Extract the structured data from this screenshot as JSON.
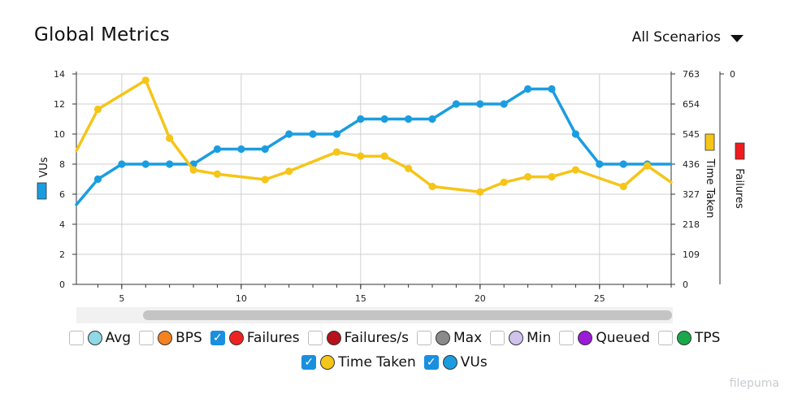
{
  "header": {
    "title": "Global Metrics",
    "scenario_label": "All Scenarios"
  },
  "legend": [
    {
      "label": "Avg",
      "checked": false,
      "color": "#8fd8e6"
    },
    {
      "label": "BPS",
      "checked": false,
      "color": "#f58220"
    },
    {
      "label": "Failures",
      "checked": true,
      "color": "#ee2222"
    },
    {
      "label": "Failures/s",
      "checked": false,
      "color": "#b5121b"
    },
    {
      "label": "Max",
      "checked": false,
      "color": "#8a8a8a"
    },
    {
      "label": "Min",
      "checked": false,
      "color": "#cfc3ee"
    },
    {
      "label": "Queued",
      "checked": false,
      "color": "#9b1bd6"
    },
    {
      "label": "TPS",
      "checked": false,
      "color": "#19a84a"
    },
    {
      "label": "Time Taken",
      "checked": true,
      "color": "#f5c518"
    },
    {
      "label": "VUs",
      "checked": true,
      "color": "#1a9de0"
    }
  ],
  "watermark": "filepuma",
  "chart_data": {
    "type": "line",
    "x_ticks": [
      "5",
      "10",
      "15",
      "20",
      "25"
    ],
    "xlim": [
      3.1,
      28
    ],
    "y_left": {
      "label": "VUs",
      "ticks": [
        "0",
        "2",
        "4",
        "6",
        "8",
        "10",
        "12",
        "14"
      ],
      "range": [
        0,
        14
      ]
    },
    "y_right": {
      "label": "Time Taken",
      "ticks": [
        "0",
        "109",
        "218",
        "327",
        "436",
        "545",
        "654",
        "763"
      ],
      "range": [
        0,
        763
      ]
    },
    "y_right2": {
      "label": "Failures",
      "ticks": [
        "0"
      ]
    },
    "grid": true,
    "series": [
      {
        "name": "VUs",
        "axis": "left",
        "color": "#1a9de0",
        "points": [
          [
            3.1,
            5.3
          ],
          [
            4,
            7
          ],
          [
            5,
            8
          ],
          [
            6,
            8
          ],
          [
            7,
            8
          ],
          [
            8,
            8
          ],
          [
            9,
            9
          ],
          [
            10,
            9
          ],
          [
            11,
            9
          ],
          [
            12,
            10
          ],
          [
            13,
            10
          ],
          [
            14,
            10
          ],
          [
            15,
            11
          ],
          [
            16,
            11
          ],
          [
            17,
            11
          ],
          [
            18,
            11
          ],
          [
            19,
            12
          ],
          [
            20,
            12
          ],
          [
            21,
            12
          ],
          [
            22,
            13
          ],
          [
            23,
            13
          ],
          [
            24,
            10
          ],
          [
            25,
            8
          ],
          [
            26,
            8
          ],
          [
            27,
            8
          ],
          [
            28,
            8
          ]
        ]
      },
      {
        "name": "Time Taken",
        "axis": "right",
        "color": "#f5c518",
        "points": [
          [
            3.1,
            485
          ],
          [
            4,
            635
          ],
          [
            6,
            740
          ],
          [
            7,
            530
          ],
          [
            8,
            415
          ],
          [
            9,
            400
          ],
          [
            11,
            380
          ],
          [
            12,
            410
          ],
          [
            14,
            480
          ],
          [
            15,
            465
          ],
          [
            16,
            465
          ],
          [
            17,
            420
          ],
          [
            18,
            355
          ],
          [
            20,
            335
          ],
          [
            21,
            370
          ],
          [
            22,
            390
          ],
          [
            23,
            390
          ],
          [
            24,
            415
          ],
          [
            26,
            355
          ],
          [
            27,
            430
          ],
          [
            28,
            370
          ]
        ]
      }
    ]
  }
}
